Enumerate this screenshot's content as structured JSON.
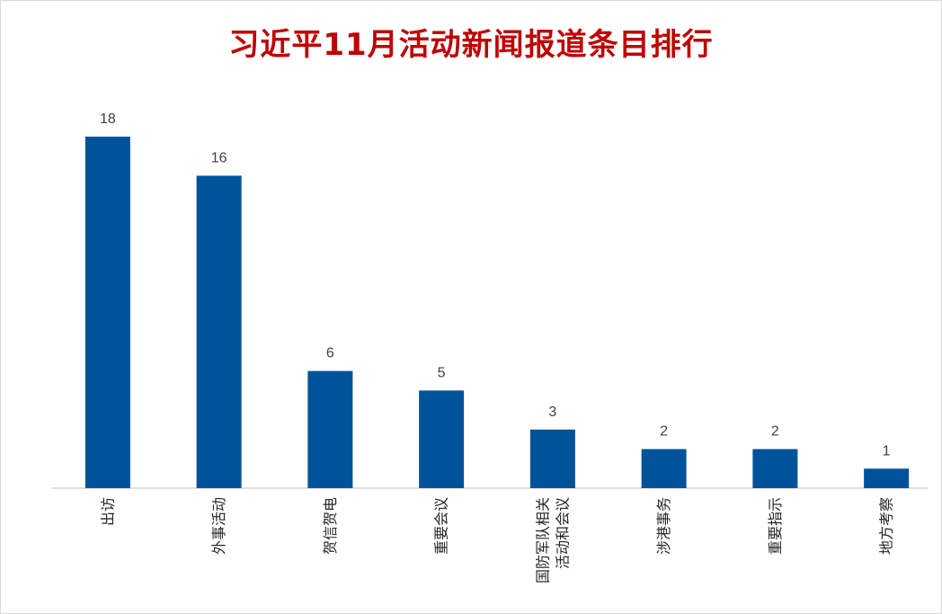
{
  "chart_data": {
    "type": "bar",
    "title": "习近平11月活动新闻报道条目排行",
    "categories": [
      "出访",
      "外事活动",
      "贺信贺电",
      "重要会议",
      "国防军队相关活动和会议",
      "涉港事务",
      "重要指示",
      "地方考察"
    ],
    "category_lines": [
      [
        "出访"
      ],
      [
        "外事活动"
      ],
      [
        "贺信贺电"
      ],
      [
        "重要会议"
      ],
      [
        "国防军队相关",
        "活动和会议"
      ],
      [
        "涉港事务"
      ],
      [
        "重要指示"
      ],
      [
        "地方考察"
      ]
    ],
    "values": [
      18,
      16,
      6,
      5,
      3,
      2,
      2,
      1
    ],
    "ylim": [
      0,
      18
    ],
    "bar_color": "#00539b",
    "title_color": "#c00000",
    "grid": false,
    "legend": "none",
    "data_labels": true
  }
}
